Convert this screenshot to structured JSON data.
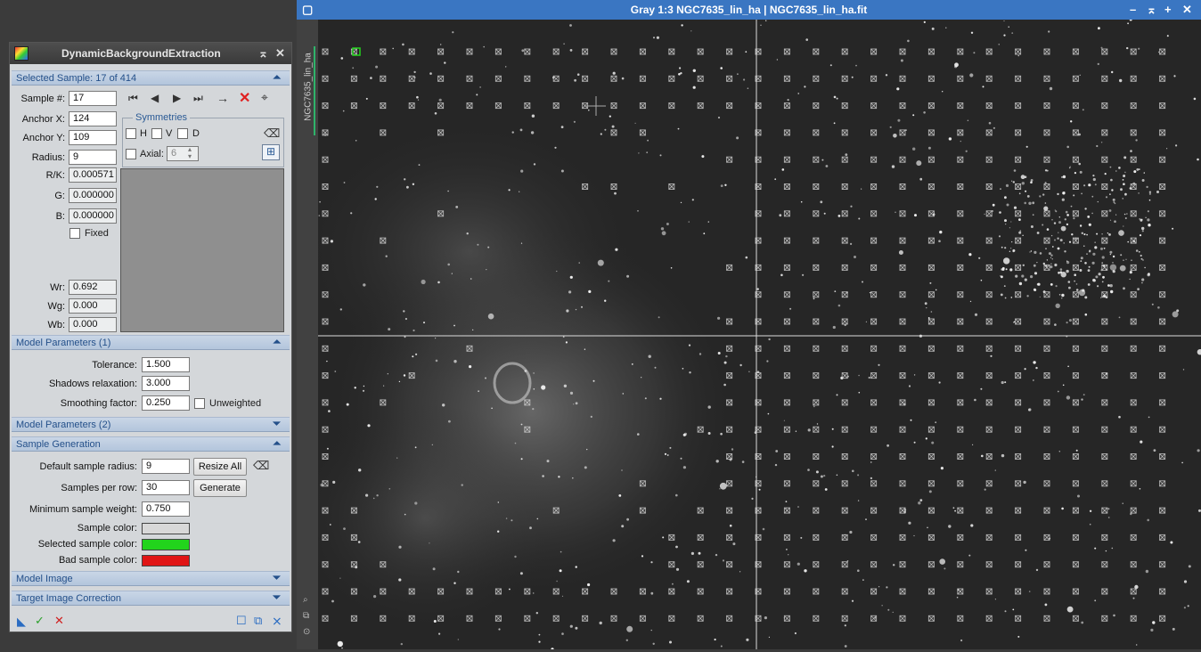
{
  "panel": {
    "title": "DynamicBackgroundExtraction",
    "selected_sample_header": "Selected Sample: 17 of 414",
    "sample_num_label": "Sample #:",
    "sample_num": "17",
    "anchor_x_label": "Anchor X:",
    "anchor_x": "124",
    "anchor_y_label": "Anchor Y:",
    "anchor_y": "109",
    "radius_label": "Radius:",
    "radius": "9",
    "symmetries_label": "Symmetries",
    "sym_h": "H",
    "sym_v": "V",
    "sym_d": "D",
    "axial_label": "Axial:",
    "axial_value": "6",
    "rk_label": "R/K:",
    "rk": "0.000571",
    "g_label": "G:",
    "g": "0.000000",
    "b_label": "B:",
    "b": "0.000000",
    "fixed_label": "Fixed",
    "wr_label": "Wr:",
    "wr": "0.692",
    "wg_label": "Wg:",
    "wg": "0.000",
    "wb_label": "Wb:",
    "wb": "0.000",
    "model_params1_header": "Model Parameters (1)",
    "tolerance_label": "Tolerance:",
    "tolerance": "1.500",
    "shadows_label": "Shadows relaxation:",
    "shadows": "3.000",
    "smoothing_label": "Smoothing factor:",
    "smoothing": "0.250",
    "unweighted_label": "Unweighted",
    "model_params2_header": "Model Parameters (2)",
    "sample_gen_header": "Sample Generation",
    "default_radius_label": "Default sample radius:",
    "default_radius": "9",
    "resize_all_label": "Resize All",
    "samples_per_row_label": "Samples per row:",
    "samples_per_row": "30",
    "generate_label": "Generate",
    "min_weight_label": "Minimum sample weight:",
    "min_weight": "0.750",
    "sample_color_label": "Sample color:",
    "sample_color": "#d8d8d8",
    "selected_color_label": "Selected sample color:",
    "selected_color": "#22d41c",
    "bad_color_label": "Bad sample color:",
    "bad_color": "#e01515",
    "model_image_header": "Model Image",
    "target_correction_header": "Target Image Correction"
  },
  "image_window": {
    "title": "Gray 1:3 NGC7635_lin_ha | NGC7635_lin_ha.fit",
    "side_tab_label": "NGC7635_lin_ha"
  },
  "colors": {
    "title_bar": "#3a76c2",
    "section_text": "#24508a",
    "tab_accent": "#2fb36a"
  }
}
